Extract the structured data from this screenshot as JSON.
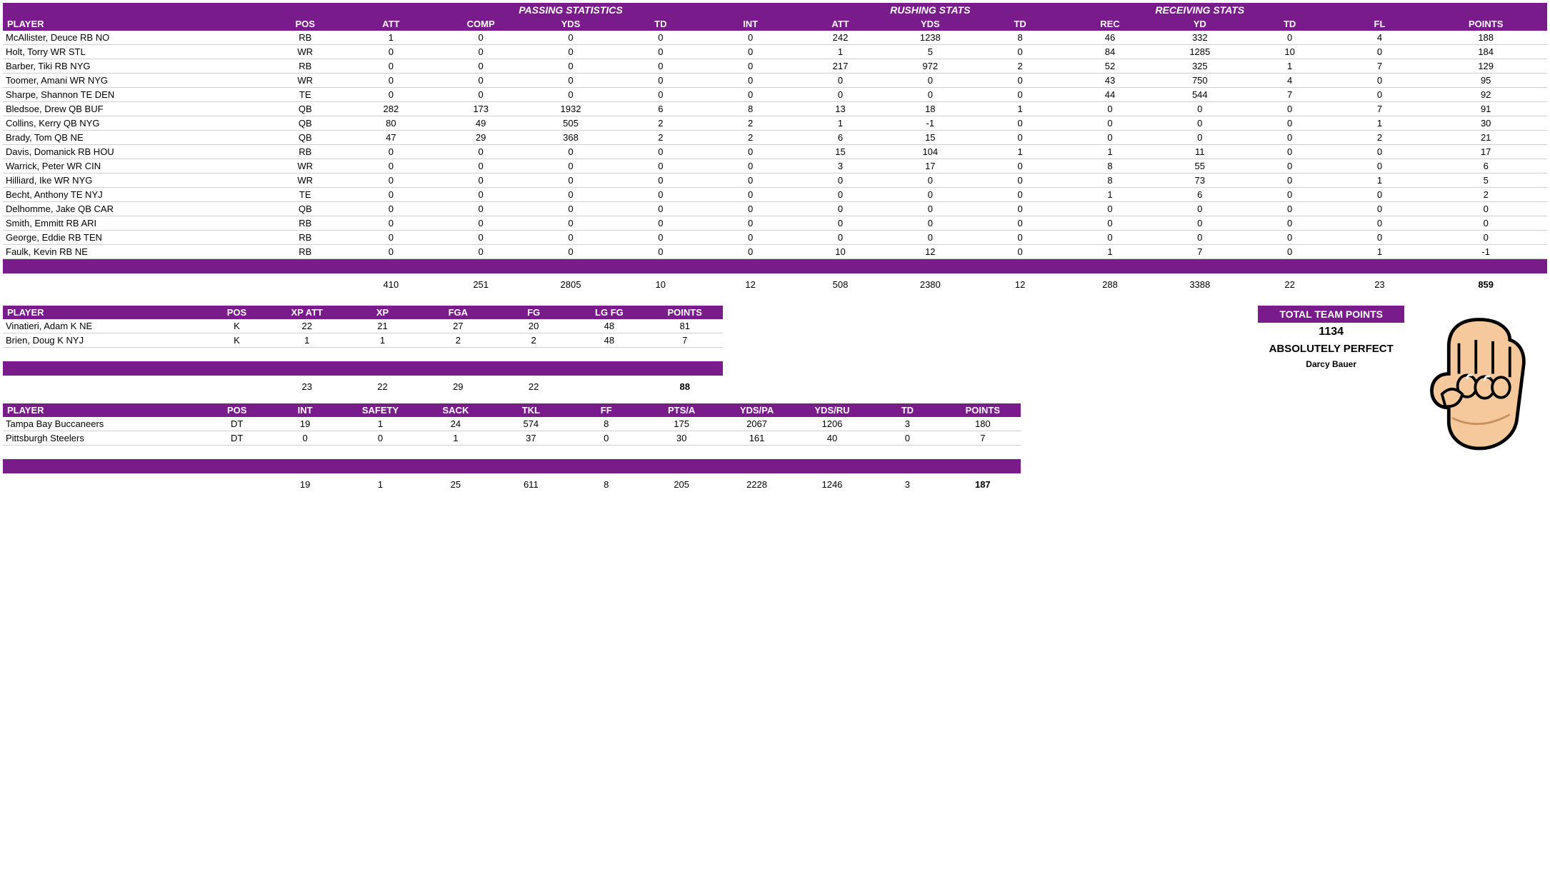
{
  "colors": {
    "header_bg": "#7a1b8b",
    "header_fg": "#ffffff",
    "row_border": "#d0d0d0"
  },
  "main_table": {
    "group_headers": {
      "passing": "PASSING STATISTICS",
      "rushing": "RUSHING STATS",
      "receiving": "RECEIVING STATS"
    },
    "columns": [
      "PLAYER",
      "POS",
      "ATT",
      "COMP",
      "YDS",
      "TD",
      "INT",
      "ATT",
      "YDS",
      "TD",
      "REC",
      "YD",
      "TD",
      "FL",
      "POINTS"
    ],
    "col_widths_pct": [
      16,
      5,
      5.5,
      5.5,
      5.5,
      5.5,
      5.5,
      5.5,
      5.5,
      5.5,
      5.5,
      5.5,
      5.5,
      5.5,
      7.5
    ],
    "rows": [
      {
        "player": "McAllister, Deuce RB NO",
        "pos": "RB",
        "v": [
          1,
          0,
          0,
          0,
          0,
          242,
          1238,
          8,
          46,
          332,
          0,
          4,
          188
        ]
      },
      {
        "player": "Holt, Torry WR STL",
        "pos": "WR",
        "v": [
          0,
          0,
          0,
          0,
          0,
          1,
          5,
          0,
          84,
          1285,
          10,
          0,
          184
        ]
      },
      {
        "player": "Barber, Tiki RB NYG",
        "pos": "RB",
        "v": [
          0,
          0,
          0,
          0,
          0,
          217,
          972,
          2,
          52,
          325,
          1,
          7,
          129
        ]
      },
      {
        "player": "Toomer, Amani WR NYG",
        "pos": "WR",
        "v": [
          0,
          0,
          0,
          0,
          0,
          0,
          0,
          0,
          43,
          750,
          4,
          0,
          95
        ]
      },
      {
        "player": "Sharpe, Shannon TE DEN",
        "pos": "TE",
        "v": [
          0,
          0,
          0,
          0,
          0,
          0,
          0,
          0,
          44,
          544,
          7,
          0,
          92
        ]
      },
      {
        "player": "Bledsoe, Drew QB BUF",
        "pos": "QB",
        "v": [
          282,
          173,
          1932,
          6,
          8,
          13,
          18,
          1,
          0,
          0,
          0,
          7,
          91
        ]
      },
      {
        "player": "Collins, Kerry QB NYG",
        "pos": "QB",
        "v": [
          80,
          49,
          505,
          2,
          2,
          1,
          -1,
          0,
          0,
          0,
          0,
          1,
          30
        ]
      },
      {
        "player": "Brady, Tom QB NE",
        "pos": "QB",
        "v": [
          47,
          29,
          368,
          2,
          2,
          6,
          15,
          0,
          0,
          0,
          0,
          2,
          21
        ]
      },
      {
        "player": "Davis, Domanick RB HOU",
        "pos": "RB",
        "v": [
          0,
          0,
          0,
          0,
          0,
          15,
          104,
          1,
          1,
          11,
          0,
          0,
          17
        ]
      },
      {
        "player": "Warrick, Peter WR CIN",
        "pos": "WR",
        "v": [
          0,
          0,
          0,
          0,
          0,
          3,
          17,
          0,
          8,
          55,
          0,
          0,
          6
        ]
      },
      {
        "player": "Hilliard, Ike WR NYG",
        "pos": "WR",
        "v": [
          0,
          0,
          0,
          0,
          0,
          0,
          0,
          0,
          8,
          73,
          0,
          1,
          5
        ]
      },
      {
        "player": "Becht, Anthony TE NYJ",
        "pos": "TE",
        "v": [
          0,
          0,
          0,
          0,
          0,
          0,
          0,
          0,
          1,
          6,
          0,
          0,
          2
        ]
      },
      {
        "player": "Delhomme, Jake QB CAR",
        "pos": "QB",
        "v": [
          0,
          0,
          0,
          0,
          0,
          0,
          0,
          0,
          0,
          0,
          0,
          0,
          0
        ]
      },
      {
        "player": "Smith, Emmitt RB ARI",
        "pos": "RB",
        "v": [
          0,
          0,
          0,
          0,
          0,
          0,
          0,
          0,
          0,
          0,
          0,
          0,
          0
        ]
      },
      {
        "player": "George, Eddie RB TEN",
        "pos": "RB",
        "v": [
          0,
          0,
          0,
          0,
          0,
          0,
          0,
          0,
          0,
          0,
          0,
          0,
          0
        ]
      },
      {
        "player": "Faulk, Kevin RB NE",
        "pos": "RB",
        "v": [
          0,
          0,
          0,
          0,
          0,
          10,
          12,
          0,
          1,
          7,
          0,
          1,
          -1
        ]
      }
    ],
    "totals": [
      "",
      "",
      410,
      251,
      2805,
      10,
      12,
      508,
      2380,
      12,
      288,
      3388,
      22,
      23,
      "859"
    ],
    "totals_bold_last": true
  },
  "kicking_table": {
    "columns": [
      "PLAYER",
      "POS",
      "XP ATT",
      "XP",
      "FGA",
      "FG",
      "LG FG",
      "POINTS"
    ],
    "rows": [
      {
        "player": "Vinatieri, Adam K NE",
        "pos": "K",
        "v": [
          22,
          21,
          27,
          20,
          48,
          81
        ]
      },
      {
        "player": "Brien, Doug K NYJ",
        "pos": "K",
        "v": [
          1,
          1,
          2,
          2,
          48,
          7
        ]
      }
    ],
    "totals": [
      "",
      "",
      23,
      22,
      29,
      22,
      "",
      "88"
    ],
    "totals_bold_last": true
  },
  "defense_table": {
    "columns": [
      "PLAYER",
      "POS",
      "INT",
      "SAFETY",
      "SACK",
      "TKL",
      "FF",
      "PTS/A",
      "YDS/PA",
      "YDS/RU",
      "TD",
      "POINTS"
    ],
    "rows": [
      {
        "player": "Tampa Bay Buccaneers",
        "pos": "DT",
        "v": [
          19,
          1,
          24,
          574,
          8,
          175,
          2067,
          1206,
          3,
          180
        ]
      },
      {
        "player": "Pittsburgh Steelers",
        "pos": "DT",
        "v": [
          0,
          0,
          1,
          37,
          0,
          30,
          161,
          40,
          0,
          7
        ]
      }
    ],
    "totals": [
      "",
      "",
      19,
      1,
      25,
      611,
      8,
      205,
      2228,
      1246,
      3,
      "187"
    ],
    "totals_bold_last": true
  },
  "team_summary": {
    "title": "TOTAL TEAM POINTS",
    "points": "1134",
    "team_name": "ABSOLUTELY PERFECT",
    "owner": "Darcy Bauer"
  }
}
